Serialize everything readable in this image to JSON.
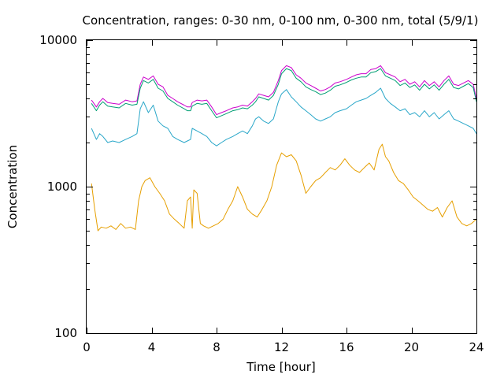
{
  "chart_data": {
    "type": "line",
    "title": "Concentration, ranges: 0-30 nm, 0-100 nm, 0-300 nm, total (5/9/1)",
    "xlabel": "Time [hour]",
    "ylabel": "Concentration",
    "xlim": [
      0,
      24
    ],
    "ylim": [
      100,
      10000
    ],
    "yscale": "log",
    "x_ticks": [
      0,
      4,
      8,
      12,
      16,
      20,
      24
    ],
    "x_tick_labels": [
      "0",
      "4",
      "8",
      "12",
      "16",
      "20",
      "24"
    ],
    "y_ticks": [
      100,
      1000,
      10000
    ],
    "y_tick_labels": [
      "100",
      "1000",
      "10000"
    ],
    "grid": false,
    "legend": false,
    "colors": {
      "range_0_30": "#e69f00",
      "range_0_100": "#2aa7c9",
      "range_0_300": "#009e73",
      "total": "#cc00cc"
    },
    "series": [
      {
        "key": "total",
        "color": "#cc00cc",
        "x": [
          0.3,
          0.6,
          0.8,
          1.0,
          1.3,
          1.6,
          2.0,
          2.4,
          2.8,
          3.1,
          3.3,
          3.5,
          3.8,
          4.1,
          4.4,
          4.7,
          5.0,
          5.3,
          5.6,
          6.0,
          6.2,
          6.4,
          6.5,
          6.8,
          7.1,
          7.4,
          7.7,
          8.0,
          8.3,
          8.6,
          9.0,
          9.3,
          9.6,
          9.9,
          10.2,
          10.4,
          10.6,
          10.9,
          11.2,
          11.5,
          11.8,
          12.0,
          12.3,
          12.6,
          12.9,
          13.2,
          13.5,
          13.8,
          14.1,
          14.4,
          14.7,
          15.0,
          15.3,
          15.6,
          16.0,
          16.3,
          16.6,
          16.9,
          17.2,
          17.5,
          17.8,
          18.1,
          18.4,
          18.7,
          19.0,
          19.3,
          19.6,
          19.9,
          20.2,
          20.5,
          20.8,
          21.1,
          21.4,
          21.7,
          22.0,
          22.3,
          22.6,
          22.9,
          23.2,
          23.5,
          23.8,
          24.0
        ],
        "y": [
          3900,
          3500,
          3800,
          4000,
          3750,
          3700,
          3650,
          3900,
          3800,
          3850,
          5000,
          5600,
          5400,
          5700,
          5000,
          4800,
          4200,
          4000,
          3800,
          3600,
          3500,
          3500,
          3750,
          3900,
          3850,
          3900,
          3500,
          3100,
          3200,
          3300,
          3450,
          3500,
          3600,
          3550,
          3800,
          4000,
          4300,
          4200,
          4100,
          4400,
          5300,
          6200,
          6700,
          6500,
          5800,
          5500,
          5100,
          4900,
          4700,
          4500,
          4600,
          4800,
          5100,
          5200,
          5400,
          5600,
          5800,
          5900,
          5900,
          6300,
          6400,
          6700,
          6000,
          5800,
          5600,
          5200,
          5400,
          5000,
          5200,
          4800,
          5300,
          4900,
          5200,
          4800,
          5300,
          5700,
          5000,
          4900,
          5100,
          5300,
          5000,
          4000
        ]
      },
      {
        "key": "range_0_300",
        "color": "#009e73",
        "x": [
          0.3,
          0.6,
          0.8,
          1.0,
          1.3,
          1.6,
          2.0,
          2.4,
          2.8,
          3.1,
          3.3,
          3.5,
          3.8,
          4.1,
          4.4,
          4.7,
          5.0,
          5.3,
          5.6,
          6.0,
          6.2,
          6.4,
          6.5,
          6.8,
          7.1,
          7.4,
          7.7,
          8.0,
          8.3,
          8.6,
          9.0,
          9.3,
          9.6,
          9.9,
          10.2,
          10.4,
          10.6,
          10.9,
          11.2,
          11.5,
          11.8,
          12.0,
          12.3,
          12.6,
          12.9,
          13.2,
          13.5,
          13.8,
          14.1,
          14.4,
          14.7,
          15.0,
          15.3,
          15.6,
          16.0,
          16.3,
          16.6,
          16.9,
          17.2,
          17.5,
          17.8,
          18.1,
          18.4,
          18.7,
          19.0,
          19.3,
          19.6,
          19.9,
          20.2,
          20.5,
          20.8,
          21.1,
          21.4,
          21.7,
          22.0,
          22.3,
          22.6,
          22.9,
          23.2,
          23.5,
          23.8,
          24.0
        ],
        "y": [
          3700,
          3300,
          3600,
          3800,
          3550,
          3500,
          3450,
          3700,
          3600,
          3650,
          4700,
          5300,
          5100,
          5400,
          4700,
          4500,
          4000,
          3800,
          3600,
          3400,
          3300,
          3300,
          3550,
          3700,
          3650,
          3700,
          3300,
          2950,
          3050,
          3150,
          3300,
          3350,
          3450,
          3400,
          3600,
          3800,
          4100,
          4000,
          3900,
          4200,
          5000,
          5900,
          6400,
          6200,
          5500,
          5200,
          4800,
          4600,
          4450,
          4250,
          4350,
          4550,
          4850,
          4950,
          5150,
          5350,
          5500,
          5600,
          5600,
          6000,
          6100,
          6400,
          5700,
          5500,
          5300,
          4900,
          5100,
          4750,
          4950,
          4550,
          5000,
          4650,
          4950,
          4550,
          5000,
          5400,
          4750,
          4650,
          4850,
          5050,
          4750,
          3800
        ]
      },
      {
        "key": "range_0_100",
        "color": "#2aa7c9",
        "x": [
          0.3,
          0.6,
          0.8,
          1.0,
          1.3,
          1.6,
          2.0,
          2.4,
          2.8,
          3.1,
          3.3,
          3.5,
          3.8,
          4.1,
          4.4,
          4.7,
          5.0,
          5.3,
          5.6,
          6.0,
          6.2,
          6.4,
          6.5,
          6.8,
          7.1,
          7.4,
          7.7,
          8.0,
          8.3,
          8.6,
          9.0,
          9.3,
          9.6,
          9.9,
          10.2,
          10.4,
          10.6,
          10.9,
          11.2,
          11.5,
          11.8,
          12.0,
          12.3,
          12.6,
          12.9,
          13.2,
          13.5,
          13.8,
          14.1,
          14.4,
          14.7,
          15.0,
          15.3,
          15.6,
          16.0,
          16.3,
          16.6,
          16.9,
          17.2,
          17.5,
          17.8,
          18.1,
          18.4,
          18.7,
          19.0,
          19.3,
          19.6,
          19.9,
          20.2,
          20.5,
          20.8,
          21.1,
          21.4,
          21.7,
          22.0,
          22.3,
          22.6,
          22.9,
          23.2,
          23.5,
          23.8,
          24.0
        ],
        "y": [
          2500,
          2100,
          2300,
          2200,
          2000,
          2050,
          2000,
          2100,
          2200,
          2300,
          3400,
          3800,
          3200,
          3600,
          2800,
          2600,
          2500,
          2200,
          2100,
          2000,
          2050,
          2100,
          2500,
          2400,
          2300,
          2200,
          2000,
          1900,
          2000,
          2100,
          2200,
          2300,
          2400,
          2300,
          2600,
          2900,
          3000,
          2800,
          2700,
          2900,
          3800,
          4300,
          4600,
          4100,
          3800,
          3500,
          3300,
          3100,
          2900,
          2800,
          2900,
          3000,
          3200,
          3300,
          3400,
          3600,
          3800,
          3900,
          4000,
          4200,
          4400,
          4700,
          4000,
          3700,
          3500,
          3300,
          3400,
          3100,
          3200,
          3000,
          3300,
          3000,
          3200,
          2900,
          3100,
          3300,
          2900,
          2800,
          2700,
          2600,
          2500,
          2300
        ]
      },
      {
        "key": "range_0_30",
        "color": "#e69f00",
        "x": [
          0.3,
          0.5,
          0.7,
          0.9,
          1.2,
          1.5,
          1.8,
          2.1,
          2.4,
          2.7,
          3.0,
          3.2,
          3.4,
          3.6,
          3.9,
          4.2,
          4.5,
          4.8,
          5.1,
          5.4,
          5.7,
          6.0,
          6.2,
          6.4,
          6.5,
          6.6,
          6.8,
          7.0,
          7.2,
          7.5,
          7.8,
          8.1,
          8.4,
          8.7,
          9.0,
          9.3,
          9.6,
          9.9,
          10.2,
          10.5,
          10.8,
          11.1,
          11.4,
          11.7,
          12.0,
          12.3,
          12.6,
          12.9,
          13.2,
          13.5,
          13.8,
          14.1,
          14.4,
          14.7,
          15.0,
          15.3,
          15.6,
          15.9,
          16.2,
          16.5,
          16.8,
          17.1,
          17.4,
          17.7,
          18.0,
          18.2,
          18.4,
          18.6,
          18.9,
          19.2,
          19.5,
          19.8,
          20.1,
          20.4,
          20.7,
          21.0,
          21.3,
          21.6,
          21.9,
          22.2,
          22.5,
          22.8,
          23.1,
          23.4,
          23.7,
          24.0
        ],
        "y": [
          1050,
          700,
          500,
          530,
          520,
          540,
          510,
          560,
          520,
          530,
          510,
          800,
          1000,
          1100,
          1150,
          1000,
          900,
          800,
          650,
          600,
          560,
          520,
          800,
          850,
          520,
          950,
          900,
          560,
          540,
          520,
          540,
          560,
          600,
          700,
          800,
          1000,
          850,
          700,
          650,
          620,
          700,
          800,
          1000,
          1400,
          1700,
          1600,
          1650,
          1500,
          1200,
          900,
          1000,
          1100,
          1150,
          1250,
          1350,
          1300,
          1400,
          1550,
          1400,
          1300,
          1250,
          1350,
          1450,
          1300,
          1800,
          1950,
          1600,
          1500,
          1250,
          1100,
          1050,
          950,
          850,
          800,
          750,
          700,
          680,
          720,
          620,
          720,
          800,
          620,
          560,
          540,
          560,
          600
        ]
      }
    ]
  }
}
